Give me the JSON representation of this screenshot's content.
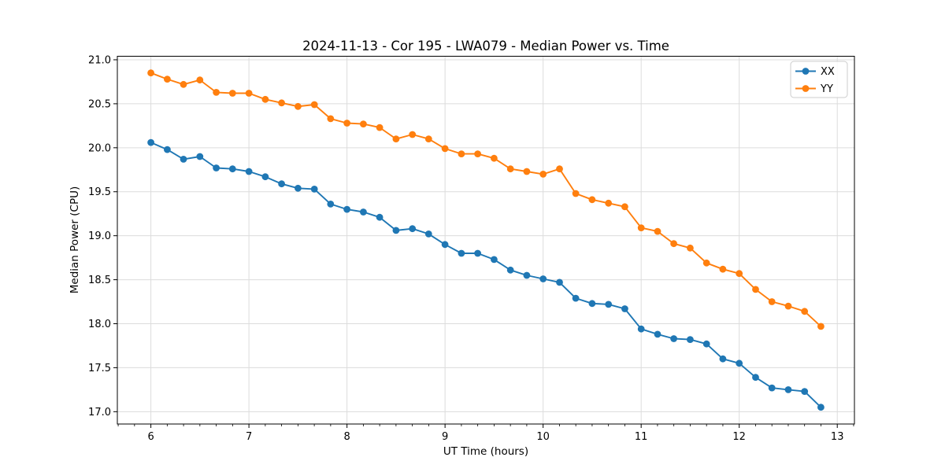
{
  "figure": {
    "background": "#ffffff"
  },
  "chart_data": {
    "type": "line",
    "title": "2024-11-13 - Cor 195 - LWA079 - Median Power vs. Time",
    "xlabel": "UT Time (hours)",
    "ylabel": "Median Power (CPU)",
    "xlim": [
      5.658,
      13.175
    ],
    "ylim": [
      16.86,
      21.04
    ],
    "grid": true,
    "grid_color": "#dcdcdc",
    "axis_color": "#000000",
    "legend_position": "upper right",
    "x_ticks": [
      6,
      7,
      8,
      9,
      10,
      11,
      12,
      13
    ],
    "x_tick_labels": [
      "6",
      "7",
      "8",
      "9",
      "10",
      "11",
      "12",
      "13"
    ],
    "y_ticks": [
      17.0,
      17.5,
      18.0,
      18.5,
      19.0,
      19.5,
      20.0,
      20.5,
      21.0
    ],
    "y_tick_labels": [
      "17.0",
      "17.5",
      "18.0",
      "18.5",
      "19.0",
      "19.5",
      "20.0",
      "20.5",
      "21.0"
    ],
    "x_minor_ticks_per_hour": 6,
    "x": [
      6.0,
      6.167,
      6.333,
      6.5,
      6.667,
      6.833,
      7.0,
      7.167,
      7.333,
      7.5,
      7.667,
      7.833,
      8.0,
      8.167,
      8.333,
      8.5,
      8.667,
      8.833,
      9.0,
      9.167,
      9.333,
      9.5,
      9.667,
      9.833,
      10.0,
      10.167,
      10.333,
      10.5,
      10.667,
      10.833,
      11.0,
      11.167,
      11.333,
      11.5,
      11.667,
      11.833,
      12.0,
      12.167,
      12.333,
      12.5,
      12.667,
      12.833
    ],
    "series": [
      {
        "name": "XX",
        "color": "#1f77b4",
        "values": [
          20.06,
          19.98,
          19.87,
          19.9,
          19.77,
          19.76,
          19.73,
          19.67,
          19.59,
          19.54,
          19.53,
          19.36,
          19.3,
          19.27,
          19.21,
          19.06,
          19.08,
          19.02,
          18.9,
          18.8,
          18.8,
          18.73,
          18.61,
          18.55,
          18.51,
          18.47,
          18.29,
          18.23,
          18.22,
          18.17,
          17.94,
          17.88,
          17.83,
          17.82,
          17.77,
          17.6,
          17.55,
          17.39,
          17.27,
          17.25,
          17.23,
          17.05
        ]
      },
      {
        "name": "YY",
        "color": "#ff7f0e",
        "values": [
          20.85,
          20.78,
          20.72,
          20.77,
          20.63,
          20.62,
          20.62,
          20.55,
          20.51,
          20.47,
          20.49,
          20.33,
          20.28,
          20.27,
          20.23,
          20.1,
          20.15,
          20.1,
          19.99,
          19.93,
          19.93,
          19.88,
          19.76,
          19.73,
          19.7,
          19.76,
          19.48,
          19.41,
          19.37,
          19.33,
          19.09,
          19.05,
          18.91,
          18.86,
          18.69,
          18.62,
          18.57,
          18.39,
          18.25,
          18.2,
          18.14,
          17.97
        ]
      }
    ]
  }
}
